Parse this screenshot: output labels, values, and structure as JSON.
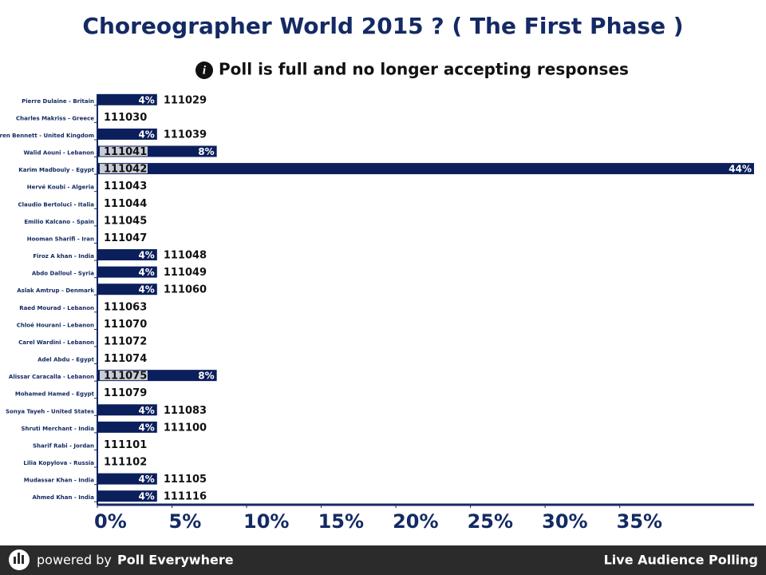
{
  "chart_data": {
    "type": "bar",
    "title": "Choreographer World 2015 ? ( The First Phase )",
    "subtitle": "Poll is full and no longer accepting responses",
    "categories": [
      "Pierre Dulaine - Britain",
      "Charles Makriss - Greece",
      "Darren Bennett - United Kingdom",
      "Walid Aouni - Lebanon",
      "Karim Madbouly - Egypt",
      "Hervé Koubi - Algeria",
      "Claudio Bertoluci - Italia",
      "Emilio Kalcano - Spain",
      "Hooman Sharifi - Iran",
      "Firoz A khan - India",
      "Abdo Dalloul - Syria",
      "Aslak Amtrup - Denmark",
      "Raed Mourad - Lebanon",
      "Chloé Hourani - Lebanon",
      "Carel Wardini - Lebanon",
      "Adel Abdu - Egypt",
      "Alissar Caracalla - Lebanon",
      "Mohamed Hamed - Egypt",
      "Sonya Tayeh - United States",
      "Shruti Merchant - India",
      "Sharif Rabi - Jordan",
      "Lilia Kopylova - Russia",
      "Mudassar Khan - India",
      "Ahmed Khan - India"
    ],
    "answer_codes": [
      "111029",
      "111030",
      "111039",
      "111041",
      "111042",
      "111043",
      "111044",
      "111045",
      "111047",
      "111048",
      "111049",
      "111060",
      "111063",
      "111070",
      "111072",
      "111074",
      "111075",
      "111079",
      "111083",
      "111100",
      "111101",
      "111102",
      "111105",
      "111116"
    ],
    "values": [
      4,
      0,
      4,
      8,
      44,
      0,
      0,
      0,
      0,
      4,
      4,
      4,
      0,
      0,
      0,
      0,
      8,
      0,
      4,
      4,
      0,
      0,
      4,
      4
    ],
    "value_labels": [
      "4%",
      null,
      "4%",
      "8%",
      "44%",
      null,
      null,
      null,
      null,
      "4%",
      "4%",
      "4%",
      null,
      null,
      null,
      null,
      "8%",
      null,
      "4%",
      "4%",
      null,
      null,
      "4%",
      "4%"
    ],
    "color": "#0b1f5c",
    "xlim": [
      0,
      44
    ],
    "xticks": [
      {
        "value": 0,
        "label": "0%"
      },
      {
        "value": 5,
        "label": "5%"
      },
      {
        "value": 10,
        "label": "10%"
      },
      {
        "value": 15,
        "label": "15%"
      },
      {
        "value": 20,
        "label": "20%"
      },
      {
        "value": 25,
        "label": "25%"
      },
      {
        "value": 30,
        "label": "30%"
      },
      {
        "value": 35,
        "label": "35%"
      }
    ],
    "grid": false
  },
  "footer": {
    "prefix": "powered by",
    "brand": "Poll Everywhere",
    "right": "Live Audience Polling"
  }
}
